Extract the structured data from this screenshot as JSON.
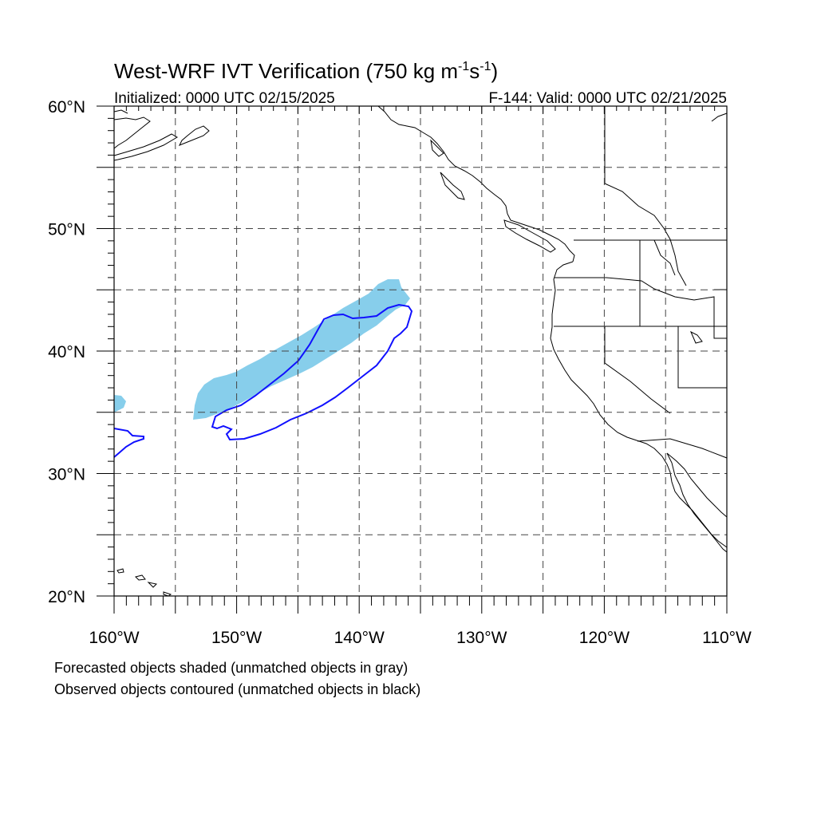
{
  "title": {
    "main": "West-WRF IVT Verification (750 kg m",
    "sup1": "-1",
    "mid": "s",
    "sup2": "-1",
    "end": ")"
  },
  "subtitle_left": "Initialized: 0000 UTC 02/15/2025",
  "subtitle_right": "F-144: Valid: 0000 UTC 02/21/2025",
  "map": {
    "lon_range": [
      -160,
      -110
    ],
    "lat_range": [
      20,
      60
    ],
    "lon_ticks": [
      {
        "value": -160,
        "label": "160°W"
      },
      {
        "value": -150,
        "label": "150°W"
      },
      {
        "value": -140,
        "label": "140°W"
      },
      {
        "value": -130,
        "label": "130°W"
      },
      {
        "value": -120,
        "label": "120°W"
      },
      {
        "value": -110,
        "label": "110°W"
      }
    ],
    "lat_ticks": [
      {
        "value": 60,
        "label": "60°N"
      },
      {
        "value": 50,
        "label": "50°N"
      },
      {
        "value": 40,
        "label": "40°N"
      },
      {
        "value": 30,
        "label": "30°N"
      },
      {
        "value": 20,
        "label": "20°N"
      }
    ],
    "gridlines": "dashed, every 5°",
    "forecast_color": "#87ceeb",
    "observed_color": "#1010ff"
  },
  "footer": {
    "line1": "Forecasted objects shaded (unmatched objects in gray)",
    "line2": "Observed objects contoured (unmatched objects in black)"
  }
}
